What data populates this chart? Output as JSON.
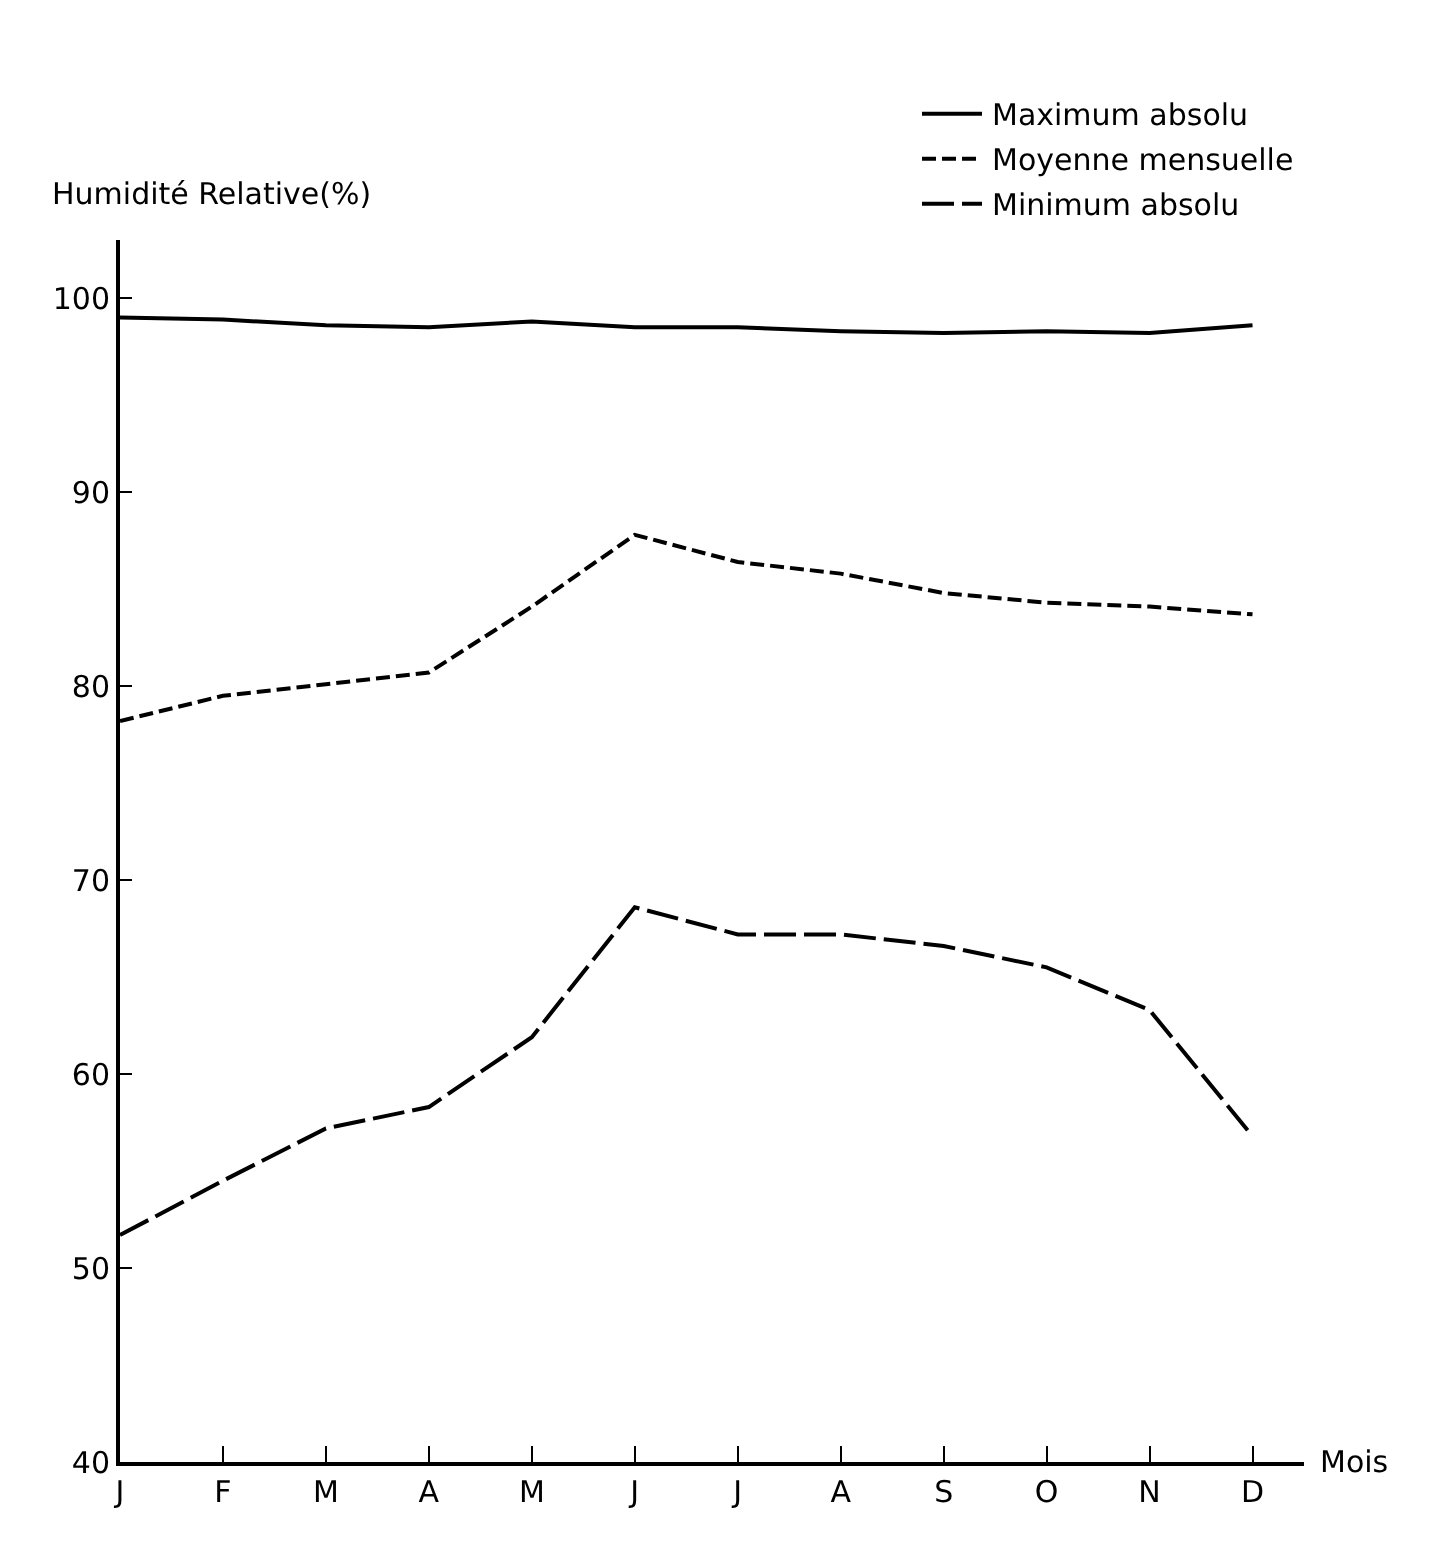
{
  "chart_data": {
    "type": "line",
    "ylabel": "Humidité Relative(%)",
    "xlabel": "Mois",
    "categories": [
      "J",
      "F",
      "M",
      "A",
      "M",
      "J",
      "J",
      "A",
      "S",
      "O",
      "N",
      "D"
    ],
    "series": [
      {
        "name": "Maximum absolu",
        "color": "#000000",
        "line_style": "solid",
        "values": [
          99.0,
          98.9,
          98.6,
          98.5,
          98.8,
          98.5,
          98.5,
          98.3,
          98.2,
          98.3,
          98.2,
          98.6
        ]
      },
      {
        "name": "Moyenne mensuelle",
        "color": "#000000",
        "line_style": "dashed",
        "values": [
          78.2,
          79.5,
          80.1,
          80.7,
          84.1,
          87.8,
          86.4,
          85.8,
          84.8,
          84.3,
          84.1,
          83.7
        ]
      },
      {
        "name": "Minimum absolu",
        "color": "#000000",
        "line_style": "longdash",
        "values": [
          51.7,
          54.5,
          57.2,
          58.3,
          61.9,
          68.6,
          67.2,
          67.2,
          66.6,
          65.5,
          63.3,
          56.8
        ]
      }
    ],
    "ylim": [
      40,
      103
    ],
    "yticks": [
      40,
      50,
      60,
      70,
      80,
      90,
      100
    ],
    "grid": false,
    "legend": "top right",
    "marker": "none"
  }
}
